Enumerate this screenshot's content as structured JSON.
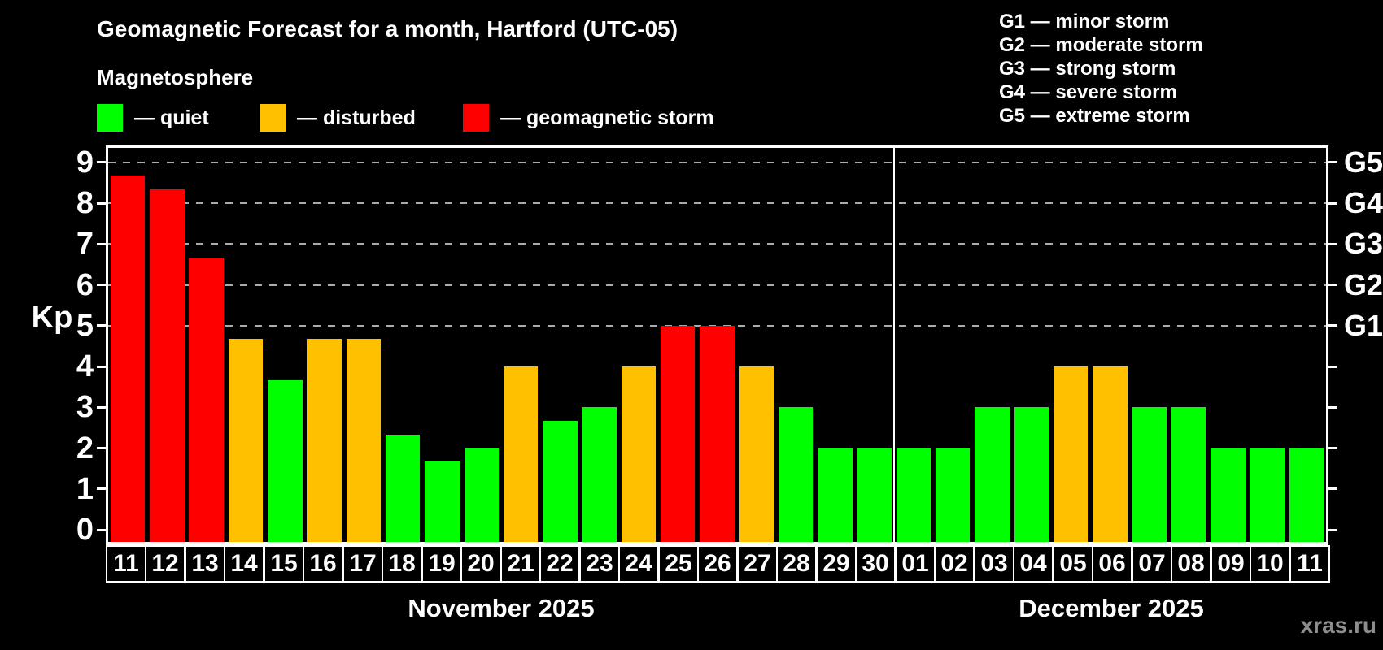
{
  "header": {
    "title": "Geomagnetic Forecast for a month, Hartford (UTC-05)",
    "subtitle": "Magnetosphere",
    "legend": [
      {
        "key": "quiet",
        "label": "— quiet",
        "color": "#00ff00"
      },
      {
        "key": "disturbed",
        "label": "— disturbed",
        "color": "#ffc000"
      },
      {
        "key": "storm",
        "label": "— geomagnetic storm",
        "color": "#ff0000"
      }
    ],
    "g_legend": [
      "G1 — minor storm",
      "G2 — moderate storm",
      "G3 — strong storm",
      "G4 — severe storm",
      "G5 — extreme storm"
    ]
  },
  "colors": {
    "background": "#000000",
    "text": "#ffffff",
    "axis": "#ffffff",
    "gridline": "#ababab",
    "quiet": "#00ff00",
    "disturbed": "#ffc000",
    "storm": "#ff0000",
    "watermark": "#8d8d8d"
  },
  "watermark": "xras.ru",
  "chart_data": {
    "type": "bar",
    "ylabel": "Kp",
    "ylim": [
      0,
      9.5
    ],
    "yticks": [
      0,
      1,
      2,
      3,
      4,
      5,
      6,
      7,
      8,
      9
    ],
    "gridlines_at": [
      5,
      6,
      7,
      8,
      9
    ],
    "grid": "dashed, only at storm levels G1–G5",
    "legend_position": "top",
    "right_axis_labels": [
      {
        "value": 5,
        "label": "G1"
      },
      {
        "value": 6,
        "label": "G2"
      },
      {
        "value": 7,
        "label": "G3"
      },
      {
        "value": 8,
        "label": "G4"
      },
      {
        "value": 9,
        "label": "G5"
      }
    ],
    "months": [
      {
        "label": "November 2025",
        "short": "nov"
      },
      {
        "label": "December 2025",
        "short": "dec"
      }
    ],
    "points": [
      {
        "day": "11",
        "month": 0,
        "value": 8.67,
        "status": "storm"
      },
      {
        "day": "12",
        "month": 0,
        "value": 8.33,
        "status": "storm"
      },
      {
        "day": "13",
        "month": 0,
        "value": 6.67,
        "status": "storm"
      },
      {
        "day": "14",
        "month": 0,
        "value": 4.67,
        "status": "disturbed"
      },
      {
        "day": "15",
        "month": 0,
        "value": 3.67,
        "status": "quiet"
      },
      {
        "day": "16",
        "month": 0,
        "value": 4.67,
        "status": "disturbed"
      },
      {
        "day": "17",
        "month": 0,
        "value": 4.67,
        "status": "disturbed"
      },
      {
        "day": "18",
        "month": 0,
        "value": 2.33,
        "status": "quiet"
      },
      {
        "day": "19",
        "month": 0,
        "value": 1.67,
        "status": "quiet"
      },
      {
        "day": "20",
        "month": 0,
        "value": 2,
        "status": "quiet"
      },
      {
        "day": "21",
        "month": 0,
        "value": 4,
        "status": "disturbed"
      },
      {
        "day": "22",
        "month": 0,
        "value": 2.67,
        "status": "quiet"
      },
      {
        "day": "23",
        "month": 0,
        "value": 3,
        "status": "quiet"
      },
      {
        "day": "24",
        "month": 0,
        "value": 4,
        "status": "disturbed"
      },
      {
        "day": "25",
        "month": 0,
        "value": 5,
        "status": "storm"
      },
      {
        "day": "26",
        "month": 0,
        "value": 5,
        "status": "storm"
      },
      {
        "day": "27",
        "month": 0,
        "value": 4,
        "status": "disturbed"
      },
      {
        "day": "28",
        "month": 0,
        "value": 3,
        "status": "quiet"
      },
      {
        "day": "29",
        "month": 0,
        "value": 2,
        "status": "quiet"
      },
      {
        "day": "30",
        "month": 0,
        "value": 2,
        "status": "quiet"
      },
      {
        "day": "01",
        "month": 1,
        "value": 2,
        "status": "quiet"
      },
      {
        "day": "02",
        "month": 1,
        "value": 2,
        "status": "quiet"
      },
      {
        "day": "03",
        "month": 1,
        "value": 3,
        "status": "quiet"
      },
      {
        "day": "04",
        "month": 1,
        "value": 3,
        "status": "quiet"
      },
      {
        "day": "05",
        "month": 1,
        "value": 4,
        "status": "disturbed"
      },
      {
        "day": "06",
        "month": 1,
        "value": 4,
        "status": "disturbed"
      },
      {
        "day": "07",
        "month": 1,
        "value": 3,
        "status": "quiet"
      },
      {
        "day": "08",
        "month": 1,
        "value": 3,
        "status": "quiet"
      },
      {
        "day": "09",
        "month": 1,
        "value": 2,
        "status": "quiet"
      },
      {
        "day": "10",
        "month": 1,
        "value": 2,
        "status": "quiet"
      },
      {
        "day": "11",
        "month": 1,
        "value": 2,
        "status": "quiet"
      }
    ]
  }
}
